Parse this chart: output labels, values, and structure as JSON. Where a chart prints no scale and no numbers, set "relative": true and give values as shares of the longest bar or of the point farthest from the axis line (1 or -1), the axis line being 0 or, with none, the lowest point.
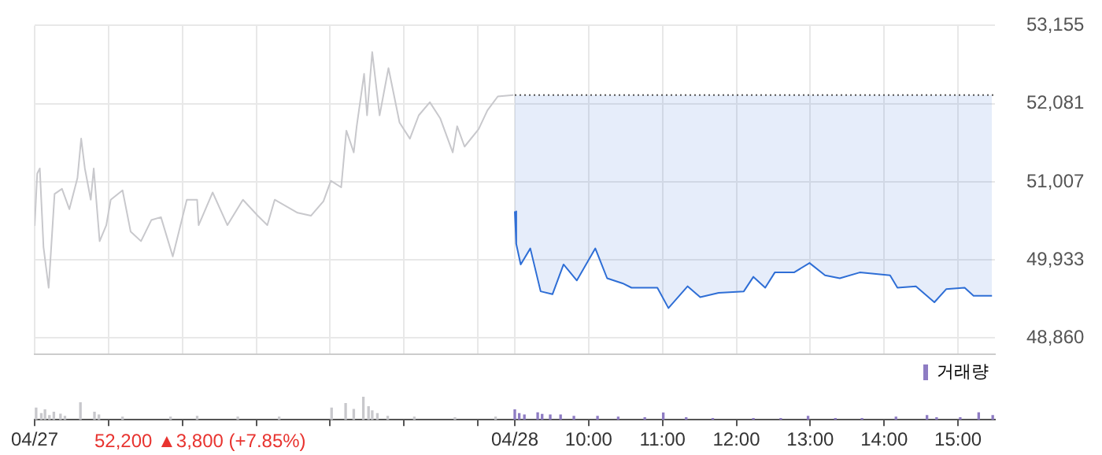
{
  "chart_data": [
    {
      "type": "line",
      "xlim": [
        2.5,
        15.5
      ],
      "ylim": [
        48640,
        53155
      ],
      "yticks": [
        {
          "value": 48860,
          "label": "48,860"
        },
        {
          "value": 49933,
          "label": "49,933"
        },
        {
          "value": 51007,
          "label": "51,007"
        },
        {
          "value": 52081,
          "label": "52,081"
        },
        {
          "value": 53155,
          "label": "53,155"
        }
      ],
      "tick_labels": "y",
      "grid": true,
      "legend": false,
      "ref_lines": [
        {
          "axis": "y",
          "value": 52200,
          "color": "#555555",
          "line_style": "dotted"
        }
      ],
      "series": [
        {
          "color": "#c8c8cc",
          "x": [
            2.5,
            2.535,
            2.57,
            2.62,
            2.69,
            2.77,
            2.87,
            2.97,
            3.08,
            3.13,
            3.18,
            3.26,
            3.3,
            3.38,
            3.47,
            3.53,
            3.69,
            3.8,
            3.94,
            4.08,
            4.21,
            4.37,
            4.56,
            4.7,
            4.72,
            4.91,
            5.11,
            5.32,
            5.52,
            5.65,
            5.75,
            6.06,
            6.24,
            6.41,
            6.51,
            6.65,
            6.72,
            6.82,
            6.86,
            6.96,
            7,
            7.07,
            7.17,
            7.29,
            7.44,
            7.58,
            7.7,
            7.85,
            7.99,
            8.16,
            8.22,
            8.32,
            8.51,
            8.63,
            8.77,
            8.98
          ],
          "values": [
            50400,
            51120,
            51190,
            50110,
            49550,
            50840,
            50910,
            50630,
            51060,
            51600,
            51190,
            50760,
            51190,
            50190,
            50410,
            50760,
            50890,
            50320,
            50190,
            50480,
            50520,
            49980,
            50760,
            50760,
            50410,
            50860,
            50410,
            50760,
            50540,
            50410,
            50760,
            50580,
            50540,
            50740,
            51020,
            50930,
            51710,
            51410,
            51770,
            52490,
            51920,
            52790,
            51920,
            52570,
            51820,
            51600,
            51920,
            52100,
            51880,
            51410,
            51770,
            51490,
            51730,
            51990,
            52180,
            52200
          ]
        },
        {
          "type": "line",
          "color": "#2f6fd6",
          "upper": [
            52200,
            52200,
            52200,
            52200,
            52200,
            52200,
            52200,
            52200,
            52200,
            52200,
            52200,
            52200,
            52200,
            52200,
            52200,
            52200,
            52200,
            52200,
            52200,
            52200,
            52200,
            52200,
            52200,
            52200,
            52200,
            52200,
            52200,
            52200,
            52200,
            52200,
            52200,
            52200,
            52200,
            52200
          ],
          "lower": [
            50600,
            50150,
            49870,
            50090,
            49500,
            49460,
            49870,
            49650,
            50090,
            49680,
            49610,
            49550,
            49550,
            49270,
            49570,
            49420,
            49480,
            49500,
            49700,
            49550,
            49760,
            49760,
            49890,
            49720,
            49680,
            49760,
            49720,
            49550,
            49570,
            49350,
            49530,
            49550,
            49440,
            49440
          ],
          "x": [
            9,
            9.02,
            9.08,
            9.21,
            9.35,
            9.51,
            9.66,
            9.84,
            10.09,
            10.25,
            10.46,
            10.58,
            10.93,
            11.08,
            11.34,
            11.51,
            11.76,
            12.1,
            12.23,
            12.39,
            12.52,
            12.78,
            12.99,
            13.2,
            13.4,
            13.67,
            14.08,
            14.18,
            14.43,
            14.68,
            14.84,
            15.09,
            15.21,
            15.46
          ],
          "values": [
            50600,
            50150,
            49870,
            50090,
            49500,
            49460,
            49870,
            49650,
            50090,
            49680,
            49610,
            49550,
            49550,
            49270,
            49570,
            49420,
            49480,
            49500,
            49700,
            49550,
            49760,
            49760,
            49890,
            49720,
            49680,
            49760,
            49720,
            49550,
            49570,
            49350,
            49530,
            49550,
            49440,
            49440
          ]
        }
      ]
    },
    {
      "type": "bar",
      "relative": true,
      "xlim": [
        2.5,
        15.5
      ],
      "xticks": [
        {
          "value": 2.5,
          "label": "04/27"
        },
        {
          "value": 3.5,
          "label": null
        },
        {
          "value": 4.5,
          "label": null
        },
        {
          "value": 5.5,
          "label": null
        },
        {
          "value": 6.5,
          "label": null
        },
        {
          "value": 7.5,
          "label": null
        },
        {
          "value": 8.5,
          "label": null
        },
        {
          "value": 9,
          "label": "04/28"
        },
        {
          "value": 10,
          "label": "10:00"
        },
        {
          "value": 11,
          "label": "11:00"
        },
        {
          "value": 12,
          "label": "12:00"
        },
        {
          "value": 13,
          "label": "13:00"
        },
        {
          "value": 14,
          "label": "14:00"
        },
        {
          "value": 15,
          "label": "15:00"
        }
      ],
      "tick_labels": "x",
      "legend": "top right",
      "annotations": [
        "52,200 ▲3,800 (+7.85%)"
      ],
      "x": [
        2.52,
        2.59,
        2.64,
        2.7,
        2.76,
        2.85,
        2.91,
        3.12,
        3.31,
        3.37,
        3.69,
        4.34,
        4.7,
        5.25,
        5.81,
        6.52,
        6.71,
        6.82,
        6.95,
        7.02,
        7.07,
        7.14,
        7.28,
        7.64,
        8.19,
        8.74,
        9,
        9.06,
        9.13,
        9.31,
        9.37,
        9.48,
        9.62,
        9.8,
        10.12,
        10.4,
        10.76,
        11.01,
        11.32,
        11.68,
        12.23,
        12.6,
        12.97,
        13.34,
        13.7,
        14.16,
        14.58,
        14.71,
        15.03,
        15.28,
        15.47
      ],
      "series": [
        {
          "name": "거래량",
          "color": "#8e7cc3",
          "values": [
            0.51,
            0.27,
            0.43,
            0.18,
            0.33,
            0.24,
            0.15,
            0.74,
            0.33,
            0.21,
            0.11,
            0.11,
            0.15,
            0.11,
            0.11,
            0.51,
            0.7,
            0.45,
            1,
            0.57,
            0.39,
            0.27,
            0.15,
            0.11,
            0.09,
            0.11,
            0.43,
            0.27,
            0.21,
            0.3,
            0.23,
            0.21,
            0.21,
            0.15,
            0.15,
            0.11,
            0.09,
            0.29,
            0.09,
            0.05,
            0.05,
            0.05,
            0.15,
            0.05,
            0.05,
            0.11,
            0.18,
            0.09,
            0.09,
            0.3,
            0.18
          ],
          "colors": [
            "#c8c8cc",
            "#c8c8cc",
            "#c8c8cc",
            "#c8c8cc",
            "#c8c8cc",
            "#c8c8cc",
            "#c8c8cc",
            "#c8c8cc",
            "#c8c8cc",
            "#c8c8cc",
            "#c8c8cc",
            "#c8c8cc",
            "#c8c8cc",
            "#c8c8cc",
            "#c8c8cc",
            "#c8c8cc",
            "#c8c8cc",
            "#c8c8cc",
            "#c8c8cc",
            "#c8c8cc",
            "#c8c8cc",
            "#c8c8cc",
            "#c8c8cc",
            "#c8c8cc",
            "#c8c8cc",
            "#c8c8cc",
            "#8e7cc3",
            "#8e7cc3",
            "#8e7cc3",
            "#8e7cc3",
            "#8e7cc3",
            "#8e7cc3",
            "#8e7cc3",
            "#8e7cc3",
            "#8e7cc3",
            "#8e7cc3",
            "#8e7cc3",
            "#8e7cc3",
            "#8e7cc3",
            "#8e7cc3",
            "#8e7cc3",
            "#8e7cc3",
            "#8e7cc3",
            "#8e7cc3",
            "#8e7cc3",
            "#8e7cc3",
            "#8e7cc3",
            "#8e7cc3",
            "#8e7cc3",
            "#8e7cc3",
            "#8e7cc3"
          ]
        }
      ]
    }
  ]
}
